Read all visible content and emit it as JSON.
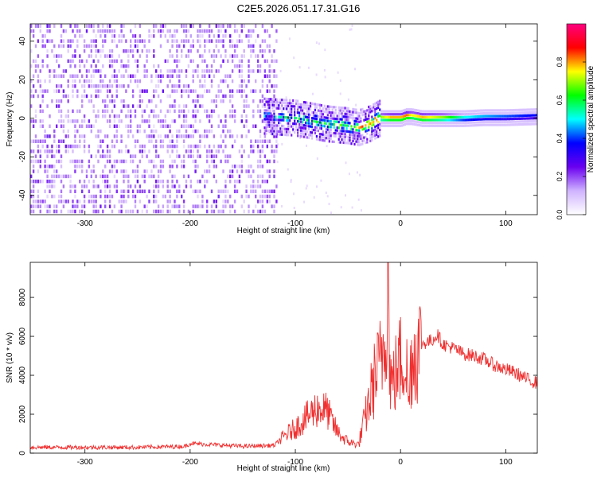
{
  "title": "C2E5.2026.051.17.31.G16",
  "chart_data": [
    {
      "type": "heatmap",
      "name": "spectrogram",
      "xlabel": "Height of straight line (km)",
      "ylabel": "Frequency (Hz)",
      "xlim": [
        -352,
        130
      ],
      "ylim": [
        -50,
        49
      ],
      "xticks": [
        -300,
        -200,
        -100,
        0,
        100
      ],
      "xtick_labels": [
        "-300",
        "-200",
        "-100",
        "0",
        "100"
      ],
      "yticks": [
        -40,
        -20,
        0,
        20,
        40
      ],
      "ytick_labels": [
        "-40",
        "-20",
        "0",
        "20",
        "40"
      ],
      "colorbar": {
        "label": "Normalized spectral amplitude",
        "range": [
          0.0,
          1.0
        ],
        "ticks": [
          0.0,
          0.2,
          0.4,
          0.6,
          0.8
        ],
        "tick_labels": [
          "0.0",
          "0.2",
          "0.4",
          "0.6",
          "0.8"
        ],
        "colormap": [
          "#ffffff",
          "#cfb3ff",
          "#6a00f0",
          "#0000ff",
          "#00ffff",
          "#00ff00",
          "#ffff00",
          "#ff0000",
          "#ff0080"
        ]
      },
      "signal_track": {
        "x": [
          -130,
          -100,
          -70,
          -50,
          -40,
          -30,
          -20,
          -10,
          0,
          5,
          10,
          20,
          40,
          60,
          80,
          100,
          130
        ],
        "y": [
          1,
          0,
          -3,
          -4,
          -5,
          -3,
          0,
          0,
          0,
          1,
          1,
          0,
          0,
          0,
          0.5,
          0.5,
          1
        ],
        "peak_amplitude": [
          0.2,
          0.35,
          0.4,
          0.45,
          0.55,
          0.6,
          0.8,
          0.9,
          0.9,
          0.95,
          0.85,
          0.9,
          0.8,
          0.6,
          0.55,
          0.5,
          0.45
        ]
      }
    },
    {
      "type": "line",
      "name": "snr",
      "xlabel": "Height of straight line (km)",
      "ylabel": "SNR (10 * v/v)",
      "xlim": [
        -352,
        130
      ],
      "ylim": [
        0,
        9800
      ],
      "xticks": [
        -300,
        -200,
        -100,
        0,
        100
      ],
      "xtick_labels": [
        "-300",
        "-200",
        "-100",
        "0",
        "100"
      ],
      "yticks": [
        0,
        2000,
        4000,
        6000,
        8000
      ],
      "ytick_labels": [
        "0",
        "2000",
        "4000",
        "6000",
        "8000"
      ],
      "color": "#f03030",
      "series": [
        {
          "name": "SNR",
          "x": [
            -352,
            -300,
            -250,
            -205,
            -200,
            -150,
            -120,
            -110,
            -100,
            -90,
            -80,
            -70,
            -65,
            -60,
            -55,
            -50,
            -45,
            -40,
            -35,
            -30,
            -25,
            -20,
            -18,
            -15,
            -12,
            -10,
            -8,
            -5,
            0,
            5,
            8,
            10,
            15,
            20,
            30,
            35,
            40,
            50,
            60,
            70,
            80,
            90,
            100,
            110,
            120,
            130
          ],
          "y": [
            300,
            300,
            300,
            350,
            500,
            350,
            400,
            900,
            1300,
            1800,
            2300,
            2200,
            1600,
            1100,
            800,
            600,
            500,
            450,
            1500,
            2600,
            3800,
            4500,
            5000,
            6000,
            9800,
            4200,
            3500,
            4000,
            4800,
            5000,
            2500,
            4800,
            5300,
            5600,
            5800,
            6100,
            5600,
            5400,
            5100,
            5000,
            4800,
            4500,
            4300,
            4100,
            3800,
            3600
          ]
        }
      ]
    }
  ]
}
